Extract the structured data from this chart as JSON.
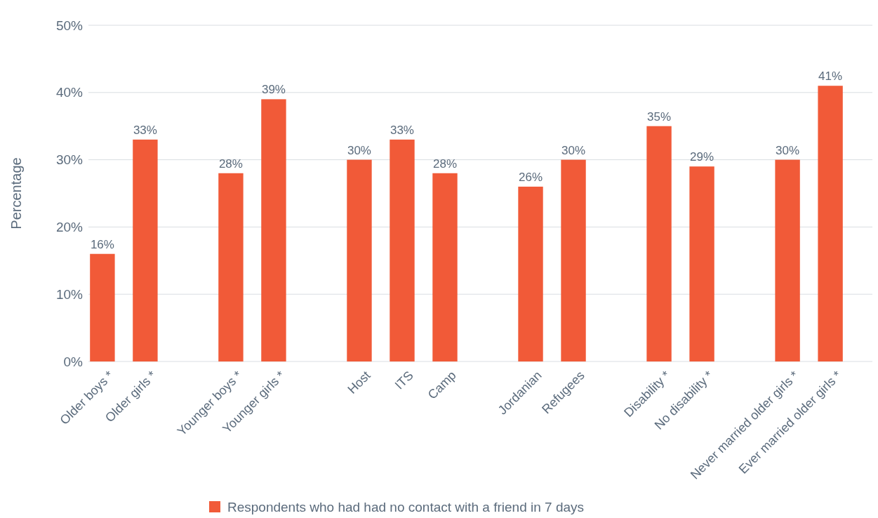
{
  "chart_data": {
    "type": "bar",
    "ylabel": "Percentage",
    "categories": [
      "Older boys *",
      "Older girls *",
      null,
      "Younger boys *",
      "Younger girls *",
      null,
      "Host",
      "ITS",
      "Camp",
      null,
      "Jordanian",
      "Refugees",
      null,
      "Disability *",
      "No disability *",
      null,
      "Never married older girls *",
      "Ever married older girls *"
    ],
    "series": [
      {
        "name": "Respondents who had had no contact with a friend in 7 days",
        "color": "#f15a38",
        "values": [
          16,
          33,
          null,
          28,
          39,
          null,
          30,
          33,
          28,
          null,
          26,
          30,
          null,
          35,
          29,
          null,
          30,
          41
        ],
        "value_labels": [
          "16%",
          "33%",
          null,
          "28%",
          "39%",
          null,
          "30%",
          "33%",
          "28%",
          null,
          "26%",
          "30%",
          null,
          "35%",
          "29%",
          null,
          "30%",
          "41%"
        ]
      }
    ],
    "ylim": [
      0,
      50
    ],
    "yticks": [
      {
        "value": 0,
        "label": "0%"
      },
      {
        "value": 10,
        "label": "10%"
      },
      {
        "value": 20,
        "label": "20%"
      },
      {
        "value": 30,
        "label": "30%"
      },
      {
        "value": 40,
        "label": "40%"
      },
      {
        "value": 50,
        "label": "50%"
      }
    ],
    "grid": "y",
    "legend": "bottom"
  }
}
